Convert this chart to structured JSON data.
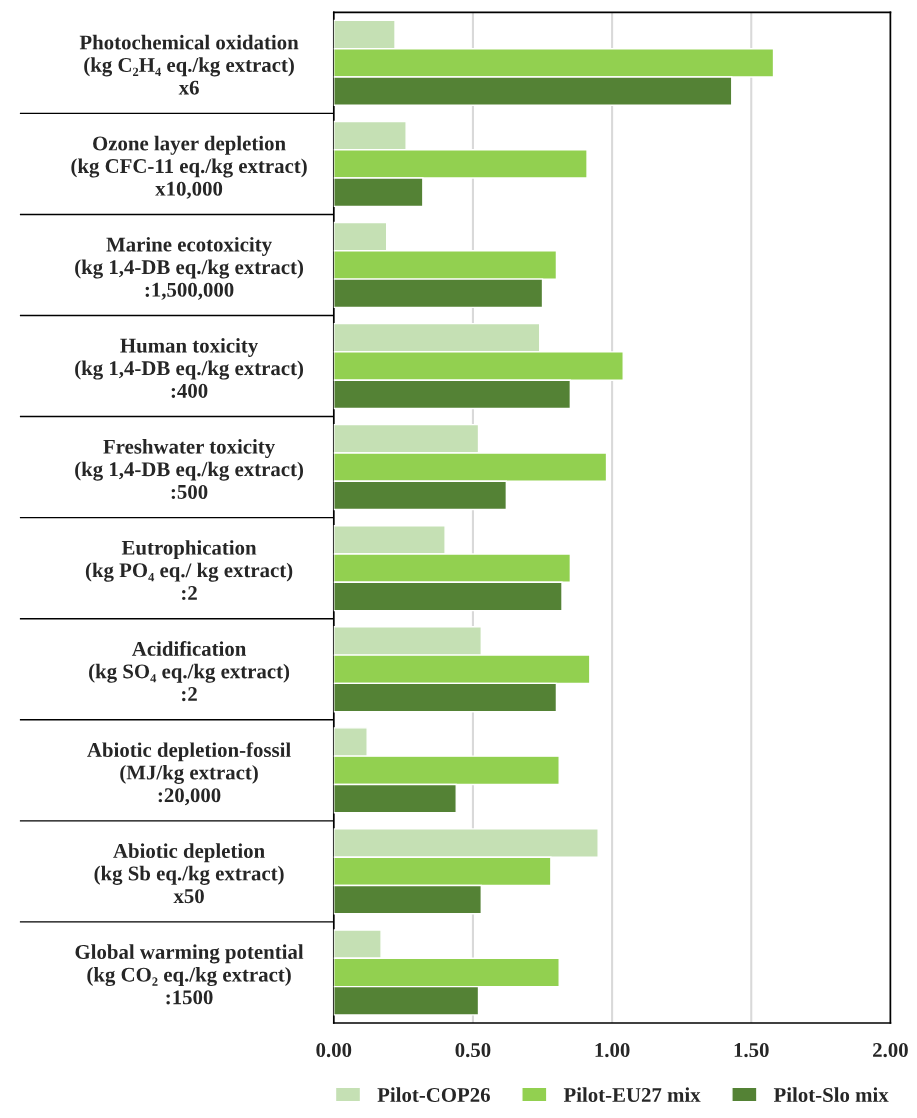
{
  "chart_data": {
    "type": "bar",
    "orientation": "horizontal",
    "categories": [
      "Photochemical oxidation\n(kg C₂H₄ eq./kg extract)\nx6",
      "Ozone layer depletion\n(kg CFC-11 eq./kg extract)\nx10,000",
      "Marine ecotoxicity\n(kg 1,4-DB eq./kg extract)\n:1,500,000",
      "Human toxicity\n(kg 1,4-DB eq./kg extract)\n:400",
      "Freshwater toxicity\n(kg 1,4-DB eq./kg extract)\n:500",
      "Eutrophication\n(kg PO₄ eq./ kg extract)\n:2",
      "Acidification\n(kg SO₄ eq./kg extract)\n:2",
      "Abiotic depletion-fossil\n(MJ/kg extract)\n:20,000",
      "Abiotic depletion\n(kg Sb eq./kg extract)\nx50",
      "Global warming potential\n(kg CO₂ eq./kg extract)\n:1500"
    ],
    "series": [
      {
        "name": "Pilot-COP26",
        "color": "#c5e0b4",
        "values": [
          0.22,
          0.26,
          0.19,
          0.74,
          0.52,
          0.4,
          0.53,
          0.12,
          0.95,
          0.17
        ]
      },
      {
        "name": "Pilot-EU27 mix",
        "color": "#92d050",
        "values": [
          1.58,
          0.91,
          0.8,
          1.04,
          0.98,
          0.85,
          0.92,
          0.81,
          0.78,
          0.81
        ]
      },
      {
        "name": "Pilot-Slo mix",
        "color": "#548235",
        "values": [
          1.43,
          0.32,
          0.75,
          0.85,
          0.62,
          0.82,
          0.8,
          0.44,
          0.53,
          0.52
        ]
      }
    ],
    "xlim": [
      0,
      2
    ],
    "xticks": [
      {
        "value": 0,
        "label": "0.00"
      },
      {
        "value": 0.5,
        "label": "0.50"
      },
      {
        "value": 1,
        "label": "1.00"
      },
      {
        "value": 1.5,
        "label": "1.50"
      },
      {
        "value": 2,
        "label": "2.00"
      }
    ],
    "grid": "x",
    "legend": "bottom"
  }
}
